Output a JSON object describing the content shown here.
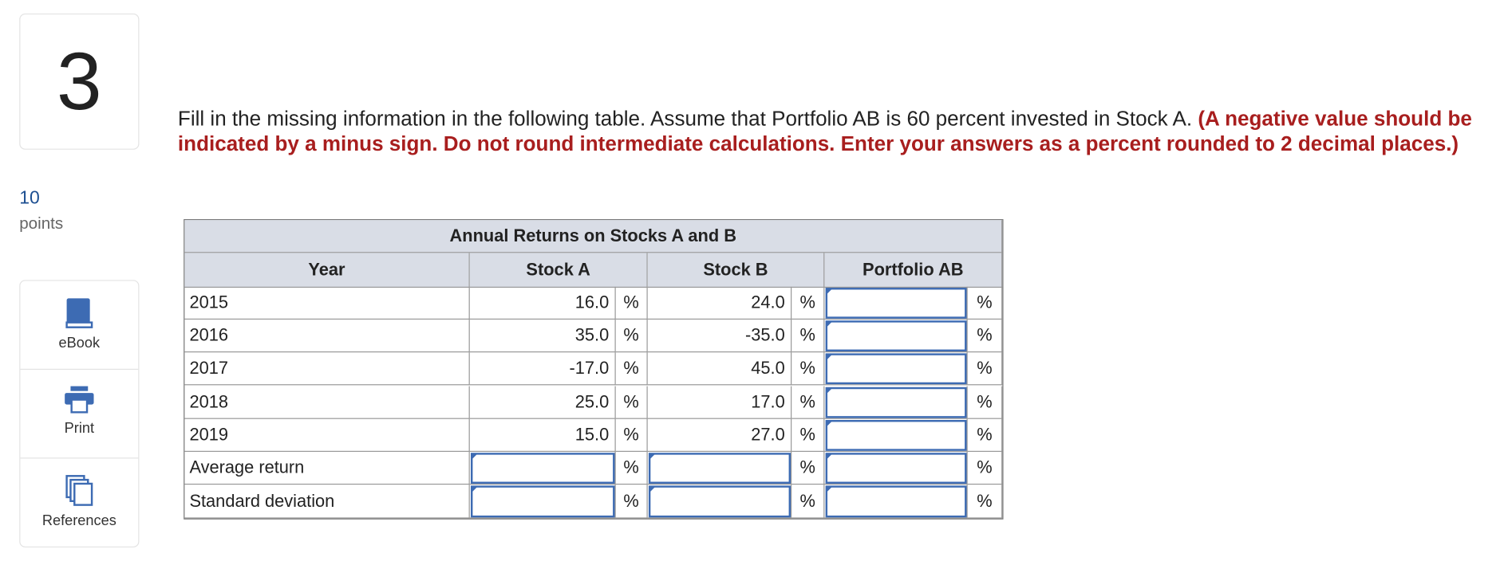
{
  "question": {
    "number": "3",
    "points": "10",
    "points_label": "points",
    "tools": [
      "eBook",
      "Print",
      "References"
    ],
    "instruction": "Fill in the missing information in the following table. Assume that Portfolio AB is 60 percent invested in Stock A.",
    "instruction_note": "(A negative value should be indicated by a minus sign. Do not round intermediate calculations. Enter your answers as a percent rounded to 2 decimal places.)"
  },
  "table": {
    "title": "Annual Returns on Stocks A and B",
    "headers": [
      "Year",
      "Stock A",
      "Stock B",
      "Portfolio AB"
    ],
    "unit": "%",
    "rows": [
      [
        "2015",
        "16.0",
        "24.0"
      ],
      [
        "2016",
        "35.0",
        "-35.0"
      ],
      [
        "2017",
        "-17.0",
        "45.0"
      ],
      [
        "2018",
        "25.0",
        "17.0"
      ],
      [
        "2019",
        "15.0",
        "27.0"
      ]
    ],
    "summary_rows": [
      "Average return",
      "Standard deviation"
    ]
  }
}
